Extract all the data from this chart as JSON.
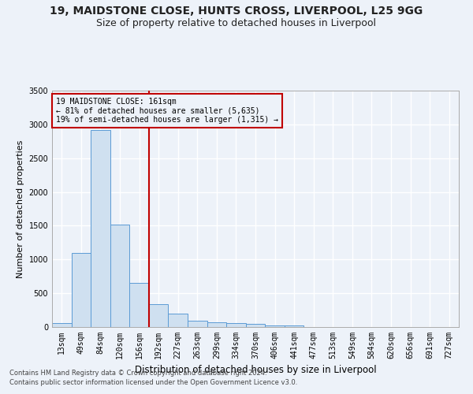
{
  "title1": "19, MAIDSTONE CLOSE, HUNTS CROSS, LIVERPOOL, L25 9GG",
  "title2": "Size of property relative to detached houses in Liverpool",
  "xlabel": "Distribution of detached houses by size in Liverpool",
  "ylabel": "Number of detached properties",
  "categories": [
    "13sqm",
    "49sqm",
    "84sqm",
    "120sqm",
    "156sqm",
    "192sqm",
    "227sqm",
    "263sqm",
    "299sqm",
    "334sqm",
    "370sqm",
    "406sqm",
    "441sqm",
    "477sqm",
    "513sqm",
    "549sqm",
    "584sqm",
    "620sqm",
    "656sqm",
    "691sqm",
    "727sqm"
  ],
  "values": [
    55,
    1100,
    2920,
    1520,
    650,
    340,
    195,
    95,
    75,
    60,
    45,
    25,
    25,
    0,
    0,
    0,
    0,
    0,
    0,
    0,
    0
  ],
  "bar_color": "#cfe0f0",
  "bar_edge_color": "#5b9bd5",
  "vline_x_index": 5,
  "vline_color": "#c00000",
  "annotation_text": "19 MAIDSTONE CLOSE: 161sqm\n← 81% of detached houses are smaller (5,635)\n19% of semi-detached houses are larger (1,315) →",
  "annotation_box_color": "#c00000",
  "ylim": [
    0,
    3500
  ],
  "yticks": [
    0,
    500,
    1000,
    1500,
    2000,
    2500,
    3000,
    3500
  ],
  "footer1": "Contains HM Land Registry data © Crown copyright and database right 2024.",
  "footer2": "Contains public sector information licensed under the Open Government Licence v3.0.",
  "background_color": "#edf2f9",
  "grid_color": "#ffffff",
  "title1_fontsize": 10,
  "title2_fontsize": 9,
  "xlabel_fontsize": 8.5,
  "ylabel_fontsize": 8,
  "tick_fontsize": 7,
  "annotation_fontsize": 7,
  "footer_fontsize": 6
}
